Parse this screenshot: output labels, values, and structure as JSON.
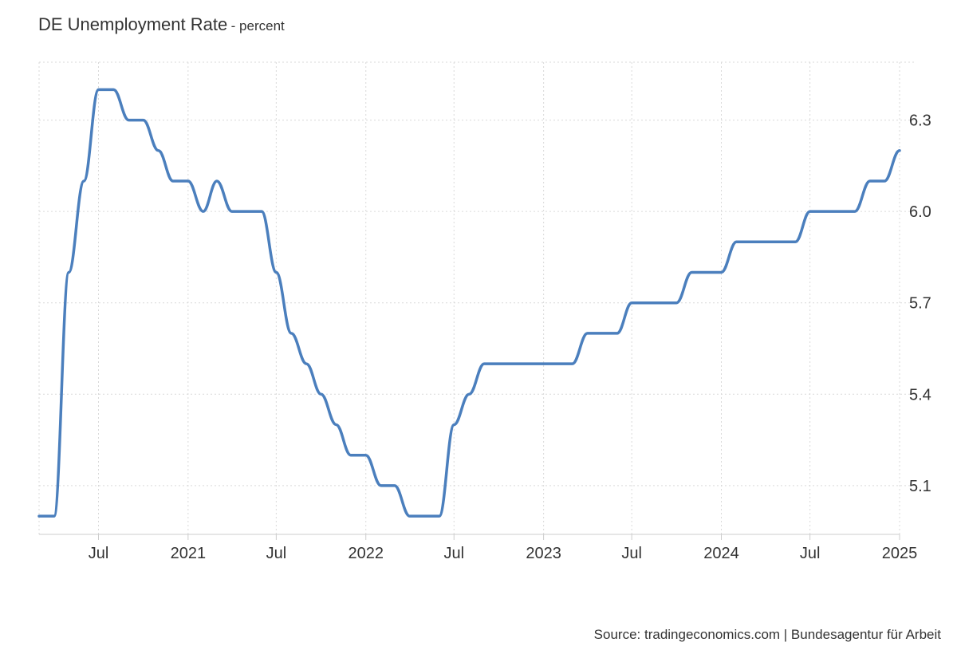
{
  "header": {
    "title": "DE Unemployment Rate",
    "subtitle": "- percent"
  },
  "footer": {
    "source": "Source: tradingeconomics.com | Bundesagentur für Arbeit"
  },
  "colors": {
    "line": "#4b7fbd"
  },
  "chart_data": {
    "type": "line",
    "x_type": "date",
    "xlim": [
      "2020-03-01",
      "2025-01-01"
    ],
    "ylim": [
      4.94,
      6.49
    ],
    "grid": true,
    "y_axis_position": "right",
    "x_ticks": [
      {
        "date": "2020-07-01",
        "label": "Jul"
      },
      {
        "date": "2021-01-01",
        "label": "2021"
      },
      {
        "date": "2021-07-01",
        "label": "Jul"
      },
      {
        "date": "2022-01-01",
        "label": "2022"
      },
      {
        "date": "2022-07-01",
        "label": "Jul"
      },
      {
        "date": "2023-01-01",
        "label": "2023"
      },
      {
        "date": "2023-07-01",
        "label": "Jul"
      },
      {
        "date": "2024-01-01",
        "label": "2024"
      },
      {
        "date": "2024-07-01",
        "label": "Jul"
      },
      {
        "date": "2025-01-01",
        "label": "2025"
      }
    ],
    "y_ticks": [
      5.1,
      5.4,
      5.7,
      6.0,
      6.3
    ],
    "y_tick_labels": [
      "5.1",
      "5.4",
      "5.7",
      "6.0",
      "6.3"
    ],
    "series": [
      {
        "x": [
          "2020-03-01",
          "2020-04-01",
          "2020-05-01",
          "2020-06-01",
          "2020-07-01",
          "2020-08-01",
          "2020-09-01",
          "2020-10-01",
          "2020-11-01",
          "2020-12-01",
          "2021-01-01",
          "2021-02-01",
          "2021-03-01",
          "2021-04-01",
          "2021-05-01",
          "2021-06-01",
          "2021-07-01",
          "2021-08-01",
          "2021-09-01",
          "2021-10-01",
          "2021-11-01",
          "2021-12-01",
          "2022-01-01",
          "2022-02-01",
          "2022-03-01",
          "2022-04-01",
          "2022-05-01",
          "2022-06-01",
          "2022-07-01",
          "2022-08-01",
          "2022-09-01",
          "2022-10-01",
          "2022-11-01",
          "2022-12-01",
          "2023-01-01",
          "2023-02-01",
          "2023-03-01",
          "2023-04-01",
          "2023-05-01",
          "2023-06-01",
          "2023-07-01",
          "2023-08-01",
          "2023-09-01",
          "2023-10-01",
          "2023-11-01",
          "2023-12-01",
          "2024-01-01",
          "2024-02-01",
          "2024-03-01",
          "2024-04-01",
          "2024-05-01",
          "2024-06-01",
          "2024-07-01",
          "2024-08-01",
          "2024-09-01",
          "2024-10-01",
          "2024-11-01",
          "2024-12-01",
          "2025-01-01"
        ],
        "y": [
          5.0,
          5.0,
          5.8,
          6.1,
          6.4,
          6.4,
          6.3,
          6.3,
          6.2,
          6.1,
          6.1,
          6.0,
          6.1,
          6.0,
          6.0,
          6.0,
          5.8,
          5.6,
          5.5,
          5.4,
          5.3,
          5.2,
          5.2,
          5.1,
          5.1,
          5.0,
          5.0,
          5.0,
          5.3,
          5.4,
          5.5,
          5.5,
          5.5,
          5.5,
          5.5,
          5.5,
          5.5,
          5.6,
          5.6,
          5.6,
          5.7,
          5.7,
          5.7,
          5.7,
          5.8,
          5.8,
          5.8,
          5.9,
          5.9,
          5.9,
          5.9,
          5.9,
          6.0,
          6.0,
          6.0,
          6.0,
          6.1,
          6.1,
          6.2
        ]
      }
    ]
  }
}
